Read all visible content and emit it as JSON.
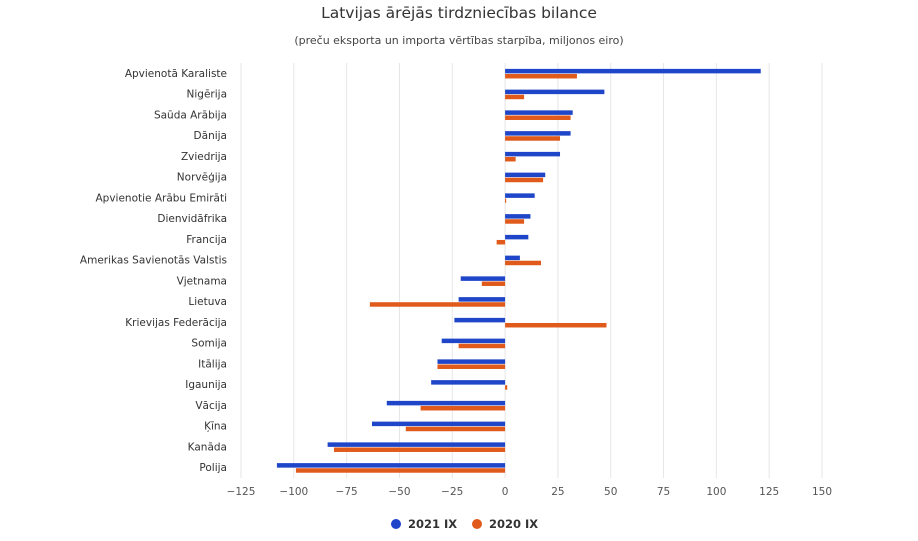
{
  "chart_data": {
    "type": "bar",
    "orientation": "horizontal",
    "title": "Latvijas ārējās tirdzniecības bilance",
    "subtitle": "(preču eksporta un importa vērtības starpība, miljonos eiro)",
    "xlabel": "",
    "ylabel": "",
    "xlim": [
      -125,
      150
    ],
    "ticks": [
      -125,
      -100,
      -75,
      -50,
      -25,
      0,
      25,
      50,
      75,
      100,
      125,
      150
    ],
    "tick_labels": [
      "−125",
      "−100",
      "−75",
      "−50",
      "−25",
      "0",
      "25",
      "50",
      "75",
      "100",
      "125",
      "150"
    ],
    "grid": "vertical",
    "legend_position": "bottom-center",
    "categories": [
      "Apvienotā Karaliste",
      "Nigērija",
      "Saūda Arābija",
      "Dānija",
      "Zviedrija",
      "Norvēģija",
      "Apvienotie Arābu Emirāti",
      "Dienvidāfrika",
      "Francija",
      "Amerikas Savienotās Valstis",
      "Vjetnama",
      "Lietuva",
      "Krievijas Federācija",
      "Somija",
      "Itālija",
      "Igaunija",
      "Vācija",
      "Ķīna",
      "Kanāda",
      "Polija"
    ],
    "series": [
      {
        "name": "2021 IX",
        "color": "#1f45c8",
        "values": [
          121,
          47,
          32,
          31,
          26,
          19,
          14,
          12,
          11,
          7,
          -21,
          -22,
          -24,
          -30,
          -32,
          -35,
          -56,
          -63,
          -84,
          -108
        ]
      },
      {
        "name": "2020 IX",
        "color": "#e05a1c",
        "values": [
          34,
          9,
          31,
          26,
          5,
          18,
          0.5,
          9,
          -4,
          17,
          -11,
          -64,
          48,
          -22,
          -32,
          1,
          -40,
          -47,
          -81,
          -99
        ]
      }
    ]
  }
}
